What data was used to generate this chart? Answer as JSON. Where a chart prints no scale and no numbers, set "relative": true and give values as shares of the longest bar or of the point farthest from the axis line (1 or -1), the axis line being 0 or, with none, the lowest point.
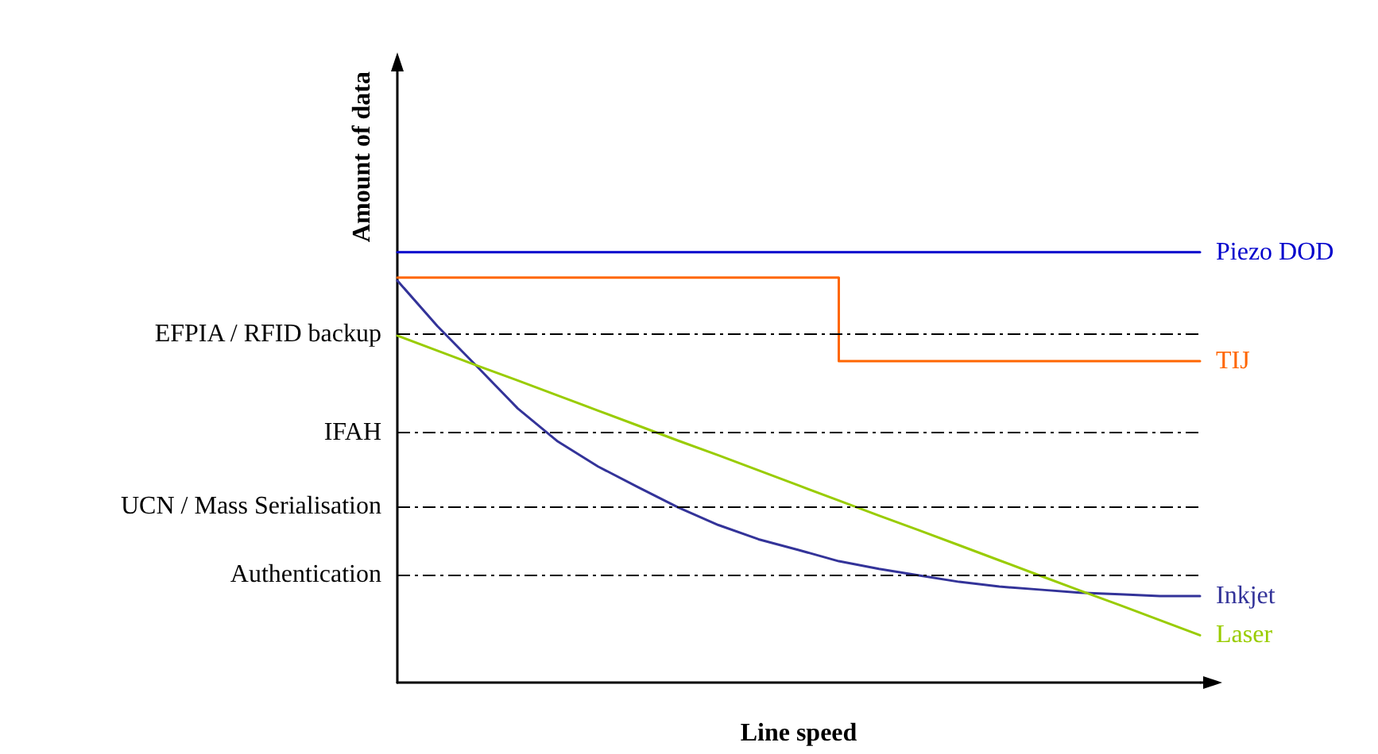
{
  "chart_data": {
    "type": "line",
    "relative": true,
    "xlabel": "Line speed",
    "ylabel": "Amount of data",
    "legend": false,
    "marker": "none",
    "grid": false,
    "categories": [
      null,
      null,
      null,
      null,
      null,
      null,
      null,
      null,
      null,
      null,
      null,
      null,
      null,
      null,
      null,
      null,
      null,
      null,
      null,
      null,
      null
    ],
    "series": [
      {
        "name": "Piezo DOD",
        "color": "#0000cc",
        "values": [
          1,
          1,
          1,
          1,
          1,
          1,
          1,
          1,
          1,
          1,
          1,
          1,
          1,
          1,
          1,
          1,
          1,
          1,
          1,
          1,
          1
        ]
      },
      {
        "name": "TIJ",
        "type": "step",
        "color": "#ff6600",
        "values": [
          0.941,
          0.941,
          0.941,
          0.941,
          0.941,
          0.941,
          0.941,
          0.941,
          0.941,
          0.941,
          0.941,
          0.747,
          0.747,
          0.747,
          0.747,
          0.747,
          0.747,
          0.747,
          0.747,
          0.747,
          0.747
        ]
      },
      {
        "name": "Inkjet",
        "color": "#333399",
        "values": [
          0.934,
          0.828,
          0.733,
          0.637,
          0.56,
          0.502,
          0.454,
          0.407,
          0.366,
          0.333,
          0.308,
          0.282,
          0.264,
          0.249,
          0.234,
          0.223,
          0.216,
          0.209,
          0.205,
          0.201,
          0.201
        ]
      },
      {
        "name": "Laser",
        "color": "#99cc00",
        "values": [
          0.806,
          0.771,
          0.736,
          0.702,
          0.667,
          0.632,
          0.597,
          0.562,
          0.528,
          0.493,
          0.458,
          0.423,
          0.388,
          0.354,
          0.319,
          0.284,
          0.249,
          0.214,
          0.18,
          0.145,
          0.11
        ]
      }
    ],
    "ref_lines": [
      {
        "axis": "y",
        "value": 0.806,
        "label": "EFPIA / RFID backup",
        "color": "#000000",
        "line_style": "dashed"
      },
      {
        "axis": "y",
        "value": 0.582,
        "label": "IFAH",
        "color": "#000000",
        "line_style": "dashed"
      },
      {
        "axis": "y",
        "value": 0.408,
        "label": "UCN / Mass Serialisation",
        "color": "#000000",
        "line_style": "dashed"
      },
      {
        "axis": "y",
        "value": 0.249,
        "label": "Authentication",
        "color": "#000000",
        "line_style": "dashed"
      }
    ]
  }
}
